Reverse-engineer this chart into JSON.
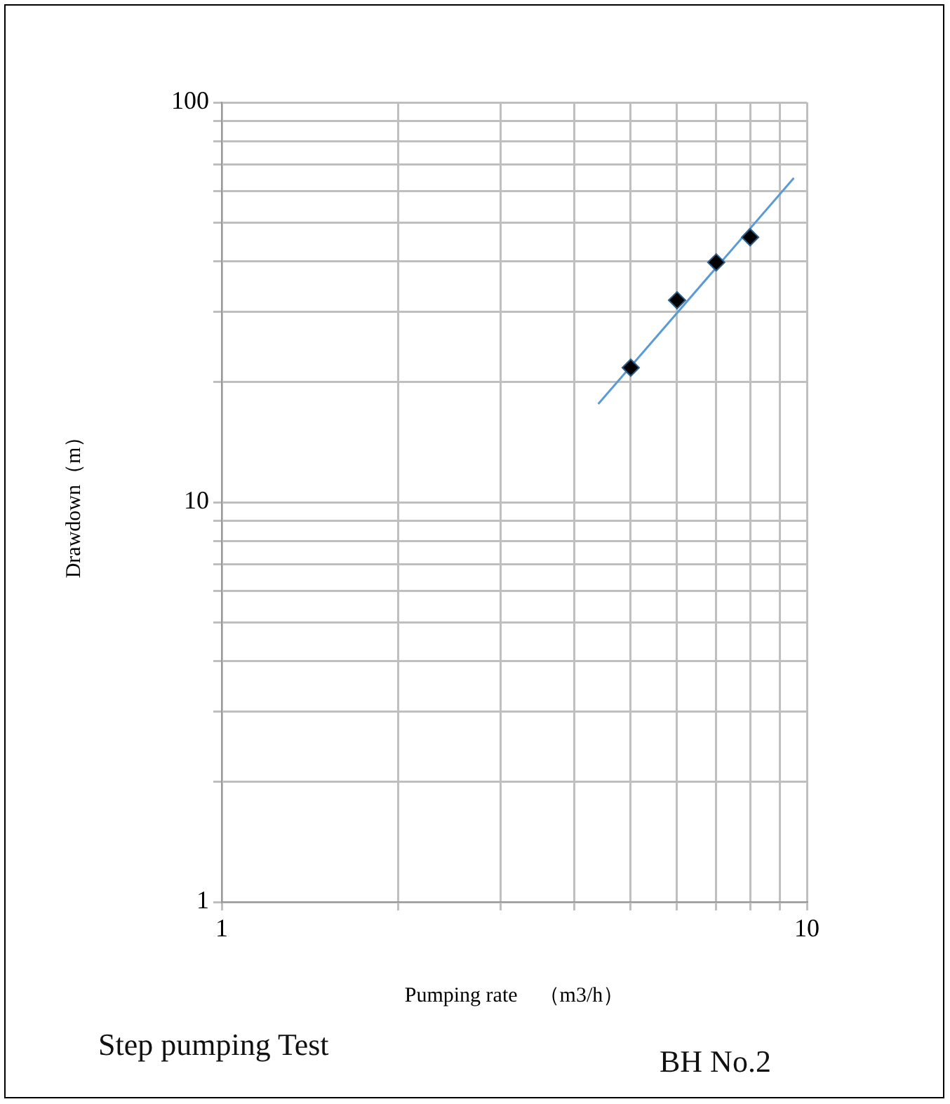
{
  "chart_data": {
    "type": "scatter",
    "xlabel": "Pumping rate　（m3/h）",
    "ylabel": "Drawdown（m）",
    "log": "xy",
    "grid": true,
    "legend": false,
    "xlim": [
      1,
      10
    ],
    "ylim": [
      1,
      100
    ],
    "xticks": [
      1,
      {
        "value": 2,
        "label": null
      },
      {
        "value": 3,
        "label": null
      },
      {
        "value": 4,
        "label": null
      },
      {
        "value": 5,
        "label": null
      },
      {
        "value": 6,
        "label": null
      },
      {
        "value": 7,
        "label": null
      },
      {
        "value": 8,
        "label": null
      },
      {
        "value": 9,
        "label": null
      },
      10
    ],
    "yticks": [
      1,
      {
        "value": 2,
        "label": null
      },
      {
        "value": 3,
        "label": null
      },
      {
        "value": 4,
        "label": null
      },
      {
        "value": 5,
        "label": null
      },
      {
        "value": 6,
        "label": null
      },
      {
        "value": 7,
        "label": null
      },
      {
        "value": 8,
        "label": null
      },
      {
        "value": 9,
        "label": null
      },
      10,
      {
        "value": 20,
        "label": null
      },
      {
        "value": 30,
        "label": null
      },
      {
        "value": 40,
        "label": null
      },
      {
        "value": 50,
        "label": null
      },
      {
        "value": 60,
        "label": null
      },
      {
        "value": 70,
        "label": null
      },
      {
        "value": 80,
        "label": null
      },
      {
        "value": 90,
        "label": null
      },
      100
    ],
    "series": [
      {
        "type": "line",
        "color": "#5b9bd5",
        "marker": "none",
        "x": [
          4.4,
          9.5
        ],
        "values": [
          17.6,
          64.7
        ]
      },
      {
        "type": "scatter",
        "color": "#000000",
        "marker": "diamond",
        "x": [
          5,
          6,
          7,
          8
        ],
        "values": [
          21.7,
          32,
          39.8,
          46
        ]
      }
    ],
    "annotations": [
      "Step pumping Test",
      "BH No.2"
    ]
  }
}
